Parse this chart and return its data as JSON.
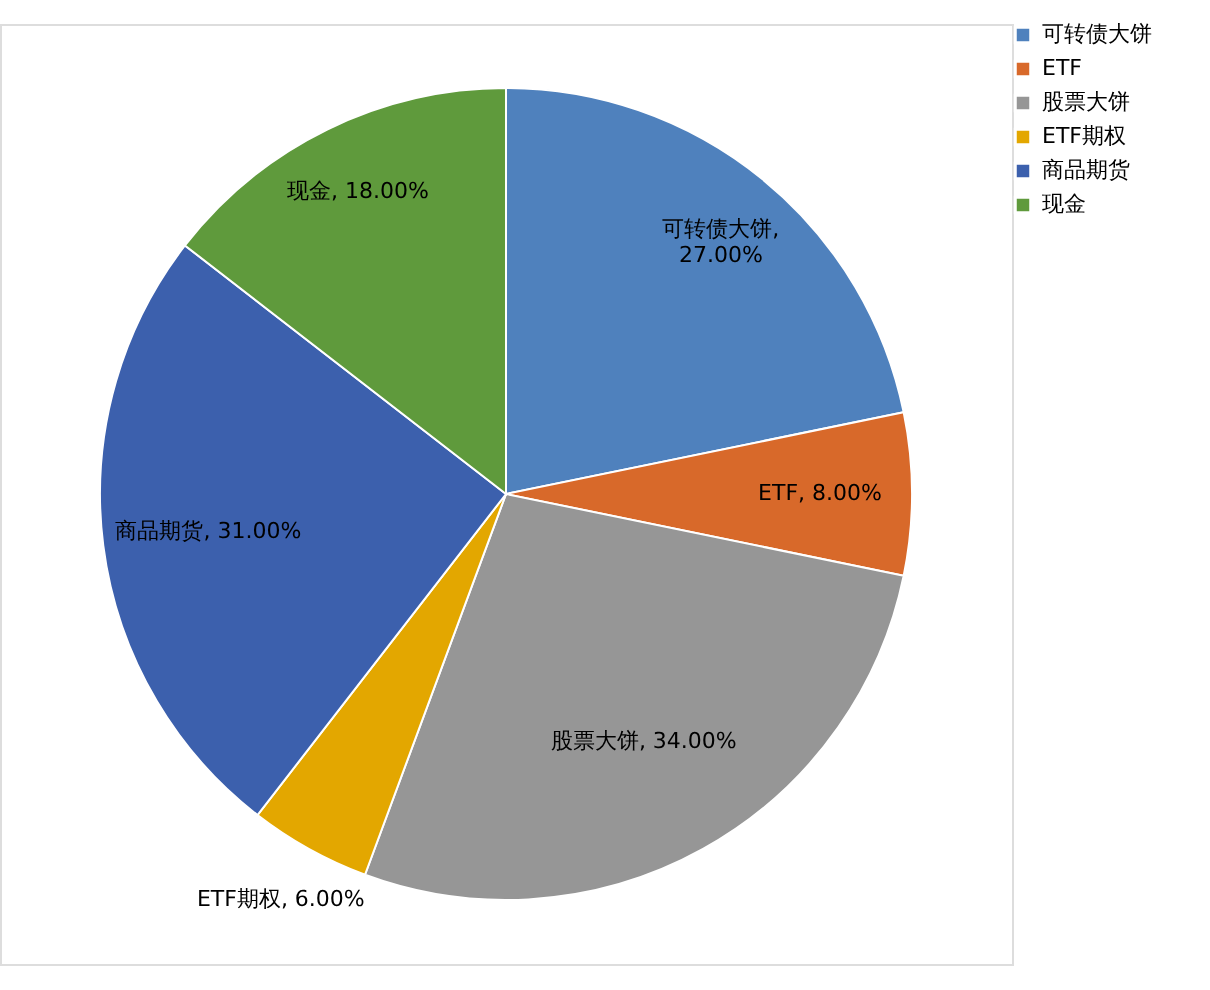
{
  "chart_data": {
    "type": "pie",
    "categories": [
      "可转债大饼",
      "ETF",
      "股票大饼",
      "ETF期权",
      "商品期货",
      "现金"
    ],
    "values": [
      27,
      8,
      34,
      6,
      31,
      18
    ],
    "value_labels": [
      "可转债大饼, 27.00%",
      "ETF, 8.00%",
      "股票大饼, 34.00%",
      "ETF期权, 6.00%",
      "商品期货, 31.00%",
      "现金, 18.00%"
    ],
    "colors": [
      "#4f81bd",
      "#d8692a",
      "#969696",
      "#e3a700",
      "#3c60ad",
      "#5f9a3c"
    ],
    "legend": "right"
  }
}
